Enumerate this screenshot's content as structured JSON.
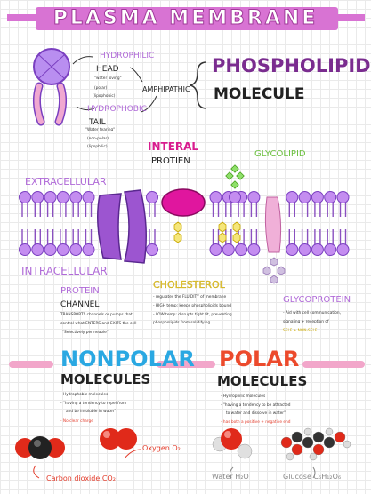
{
  "title": "PLASMA MEMBRANE",
  "phospholipid": {
    "heading_line1": "PHOSPHOLIPID",
    "heading_line2": "MOLECULE",
    "hydrophilic": "HYDROPHILIC",
    "head": "HEAD",
    "head_note1": "\"water loving\"",
    "head_note2": "(polar)",
    "head_note3": "(lipophobic)",
    "amphipathic": "AMPHIPATHIC",
    "hydrophobic": "HYDROPHOBIC",
    "tail": "TAIL",
    "tail_note1": "\"Water fearing\"",
    "tail_note2": "(non-polar)",
    "tail_note3": "(lipophilic)"
  },
  "membrane": {
    "integral_line1": "INTERAL",
    "integral_line2": "PROTIEN",
    "glycolipid": "GLYCOLIPID",
    "extracellular": "EXTRACELLULAR",
    "intracellular": "INTRACELLULAR",
    "protein_channel_line1": "PROTEIN",
    "protein_channel_line2": "CHANNEL",
    "channel_note1": "TRANSPORTS channels or pumps that",
    "channel_note2": "control what ENTERS and EXITS the cell",
    "channel_note3": "\"Selectively permeable\"",
    "cholesterol": "CHOLESTEROL",
    "chol_note1": "- regulates the FLUIDITY of membrane",
    "chol_note2": "- HIGH temp: keeps phospholipids bound",
    "chol_note3": "- LOW temp: disrupts tight fit, preventing",
    "chol_note4": "phospholipids from solidifying",
    "glycoprotein": "GLYCOPROTEIN",
    "glyco_note1": "- Aid with cell communication,",
    "glyco_note2": "signaling + reception of",
    "glyco_note3": "SELF + NON-SELF"
  },
  "nonpolar": {
    "heading_line1": "NONPOLAR",
    "heading_line2": "MOLECULES",
    "note1": "- Hydrophobic molecules",
    "note2": "- \"having a tendency to repel from",
    "note3": "and be insoluble in water\"",
    "note4": "- No clear charge",
    "oxygen": "Oxygen  O₂",
    "co2": "Carbon dioxide  CO₂"
  },
  "polar": {
    "heading_line1": "POLAR",
    "heading_line2": "MOLECULES",
    "note1": "- Hydrophilic molecules",
    "note2": "- \"having a tendency to be attracted",
    "note3": "to water and dissolve in water\"",
    "note4": "- has both a positive + negative end",
    "water": "Water  H₂O",
    "glucose": "Glucose  C₆H₁₂O₆"
  },
  "colors": {
    "purple": "#c48df0",
    "pink": "#e060d8",
    "magenta": "#e0169e",
    "pink_tail": "#f0a8d0",
    "yellow": "#f5e67a",
    "green": "#8fe06a",
    "blue": "#3fb6e8",
    "red": "#e33b2a",
    "grey": "#d0c0e0"
  }
}
